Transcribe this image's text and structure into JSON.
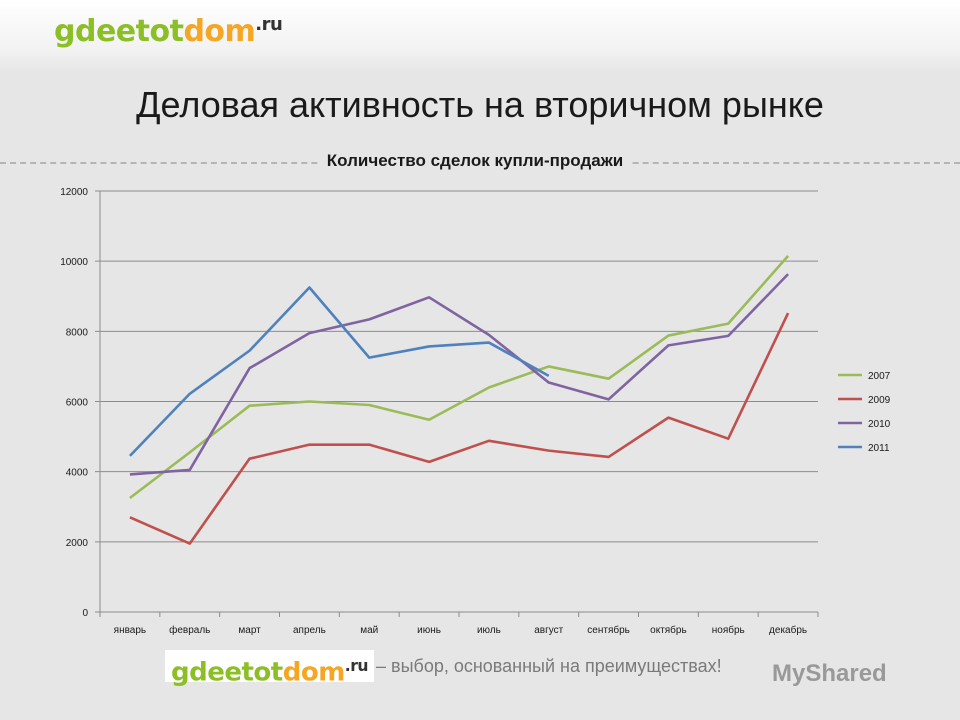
{
  "header": {
    "logo_part1": "gdeetot",
    "logo_part2": "dom",
    "logo_suffix": ".ru"
  },
  "slide": {
    "title": "Деловая активность на вторичном рынке",
    "tagline": "– выбор, основанный на преимуществах!"
  },
  "footer": {
    "logo_part1": "gdeetot",
    "logo_part2": "dom",
    "logo_suffix": ".ru",
    "watermark": "MyShared"
  },
  "colors": {
    "logo_green": "#8cbf26",
    "logo_orange": "#f5a623"
  },
  "chart_data": {
    "type": "line",
    "title": "Количество сделок купли-продажи",
    "xlabel": "",
    "ylabel": "",
    "ylim": [
      0,
      12000
    ],
    "yticks": [
      0,
      2000,
      4000,
      6000,
      8000,
      10000,
      12000
    ],
    "grid": true,
    "legend_position": "right",
    "categories": [
      "январь",
      "февраль",
      "март",
      "апрель",
      "май",
      "июнь",
      "июль",
      "август",
      "сентябрь",
      "октябрь",
      "ноябрь",
      "декабрь"
    ],
    "series": [
      {
        "name": "2007",
        "color": "#9bbb59",
        "values": [
          3250,
          4550,
          5880,
          6000,
          5900,
          5480,
          6400,
          7000,
          6650,
          7880,
          8220,
          10150
        ]
      },
      {
        "name": "2009",
        "color": "#c0504d",
        "values": [
          2700,
          1950,
          4370,
          4770,
          4770,
          4280,
          4880,
          4600,
          4420,
          5540,
          4940,
          8520
        ]
      },
      {
        "name": "2010",
        "color": "#8064a2",
        "values": [
          3920,
          4050,
          6950,
          7950,
          8340,
          8970,
          7900,
          6540,
          6060,
          7600,
          7870,
          9630
        ]
      },
      {
        "name": "2011",
        "color": "#4f81bd",
        "values": [
          4450,
          6220,
          7450,
          9250,
          7250,
          7570,
          7680,
          6730,
          null,
          null,
          null,
          null
        ]
      }
    ]
  }
}
